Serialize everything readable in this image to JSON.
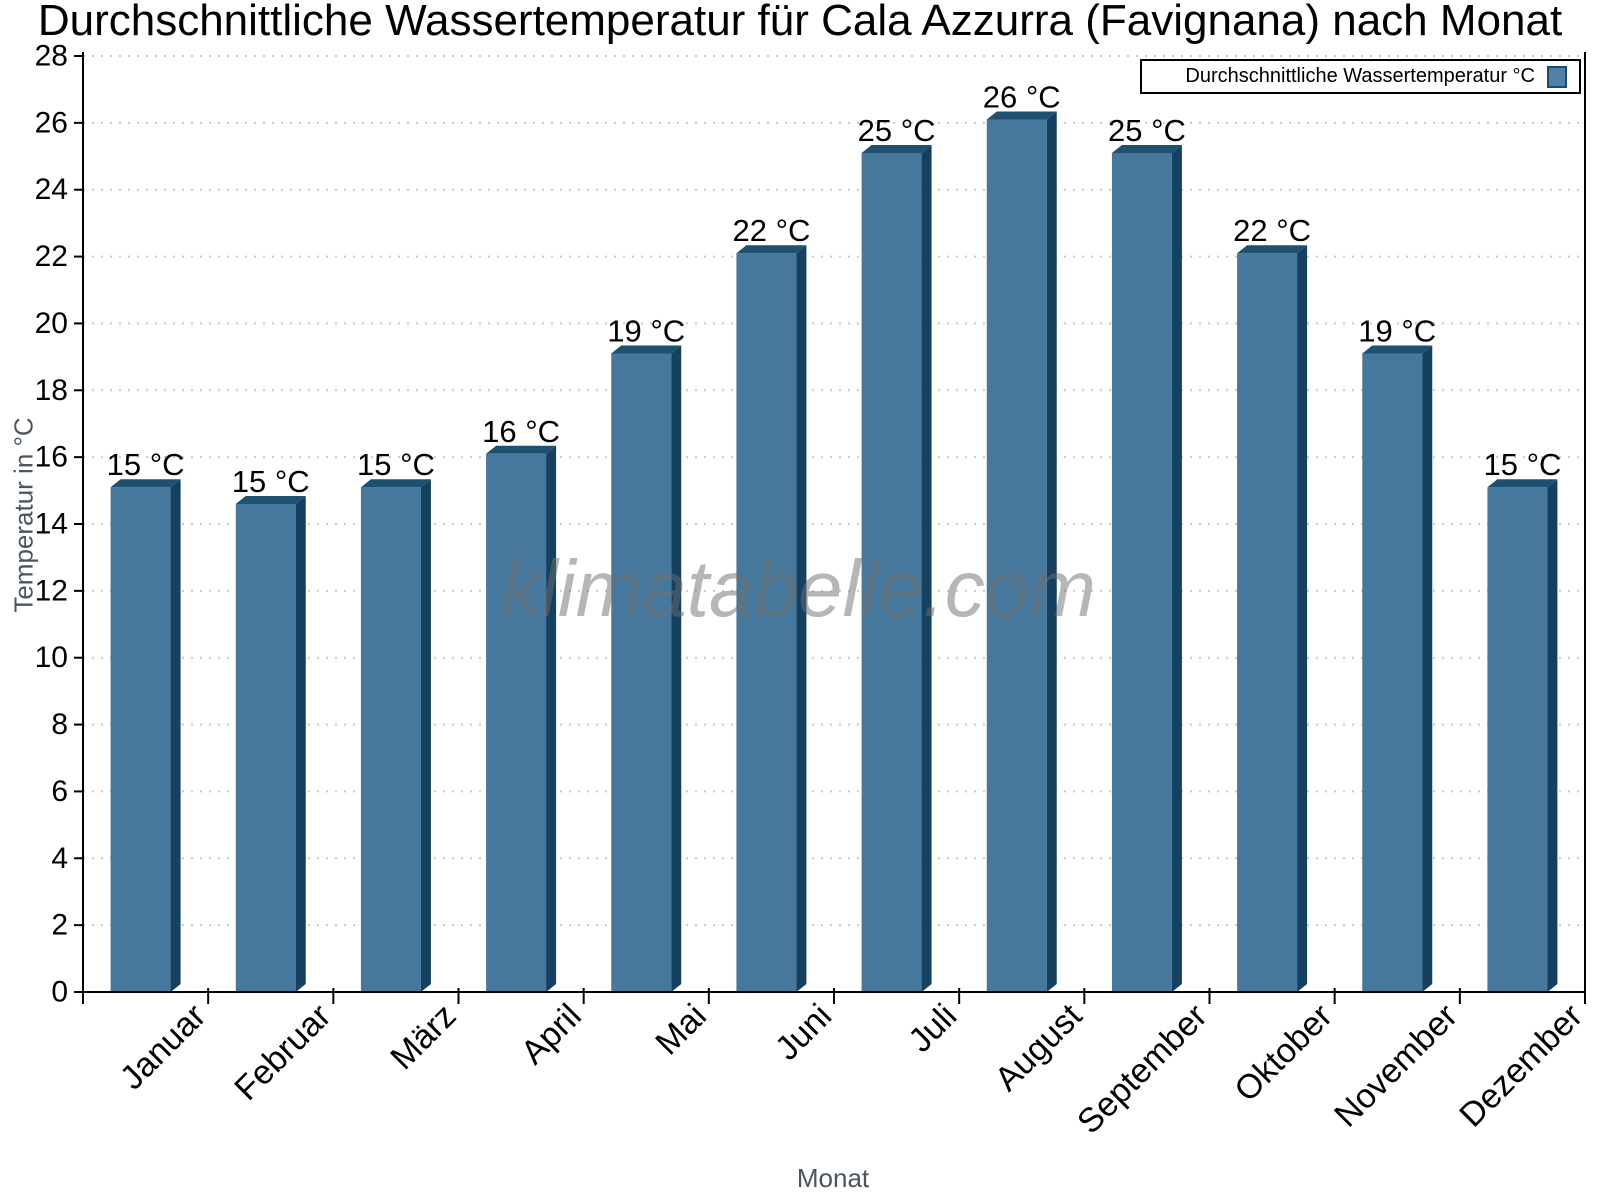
{
  "chart_data": {
    "type": "bar",
    "title": "Durchschnittliche Wassertemperatur für Cala Azzurra (Favignana) nach Monat",
    "xlabel": "Monat",
    "ylabel": "Temperatur in °C",
    "legend": "Durchschnittliche Wassertemperatur °C",
    "legend_position": "top-right",
    "watermark": "klimatabelle.com",
    "categories": [
      "Januar",
      "Februar",
      "März",
      "April",
      "Mai",
      "Juni",
      "Juli",
      "August",
      "September",
      "Oktober",
      "November",
      "Dezember"
    ],
    "values": [
      15.1,
      14.6,
      15.1,
      16.1,
      19.1,
      22.1,
      25.1,
      26.1,
      25.1,
      22.1,
      19.1,
      15.1
    ],
    "data_labels": [
      "15 °C",
      "15 °C",
      "15 °C",
      "16 °C",
      "19 °C",
      "22 °C",
      "25 °C",
      "26 °C",
      "25 °C",
      "22 °C",
      "19 °C",
      "15 °C"
    ],
    "ylim": [
      0,
      28
    ],
    "ytick_step": 2,
    "grid": "dotted-horizontal"
  },
  "colors": {
    "bar_face": "#46789d",
    "bar_top": "#1e516f",
    "bar_side": "#15405f",
    "legend_swatch": "#4d81a8",
    "legend_swatch_border": "#1d4b6b",
    "grid": "#c9c9c9",
    "axis": "#000000",
    "muted_label": "#4a555f",
    "watermark_text_color": "#6e6e6e"
  }
}
